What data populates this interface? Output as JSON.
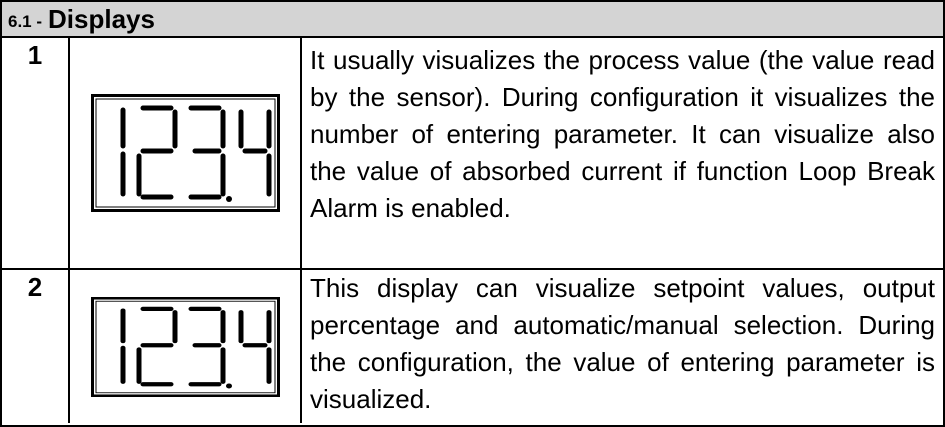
{
  "header": {
    "number": "6.1 -",
    "title": "Displays"
  },
  "table": {
    "rows": [
      {
        "number": "1",
        "description": "It usually visualizes the process value (the value read by the sensor). During configuration it visualizes the number of entering parameter. It can visualize also the value of absorbed current if function Loop Break Alarm is enabled."
      },
      {
        "number": "2",
        "description": "This display can visualize setpoint values, output percentage and automatic/manual selection. During the configuration, the value of entering parameter is visualized."
      }
    ]
  }
}
